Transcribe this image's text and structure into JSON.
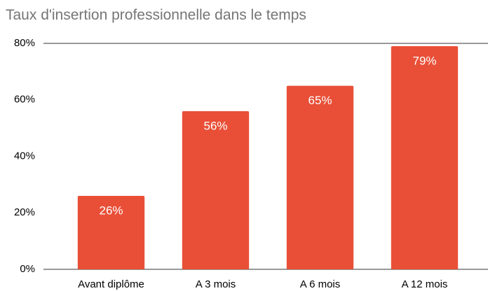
{
  "chart_data": {
    "type": "bar",
    "title": "Taux d'insertion professionnelle dans le temps",
    "categories": [
      "Avant diplôme",
      "A 3 mois",
      "A 6 mois",
      "A 12 mois"
    ],
    "values": [
      26,
      56,
      65,
      79
    ],
    "value_labels": [
      "26%",
      "56%",
      "65%",
      "79%"
    ],
    "color": "#e94f37",
    "ylim": [
      0,
      80
    ],
    "yticks": [
      {
        "value": 0,
        "label": "0%"
      },
      {
        "value": 20,
        "label": "20%"
      },
      {
        "value": 40,
        "label": "40%"
      },
      {
        "value": 60,
        "label": "60%"
      },
      {
        "value": 80,
        "label": "80%"
      }
    ],
    "grid": true
  }
}
